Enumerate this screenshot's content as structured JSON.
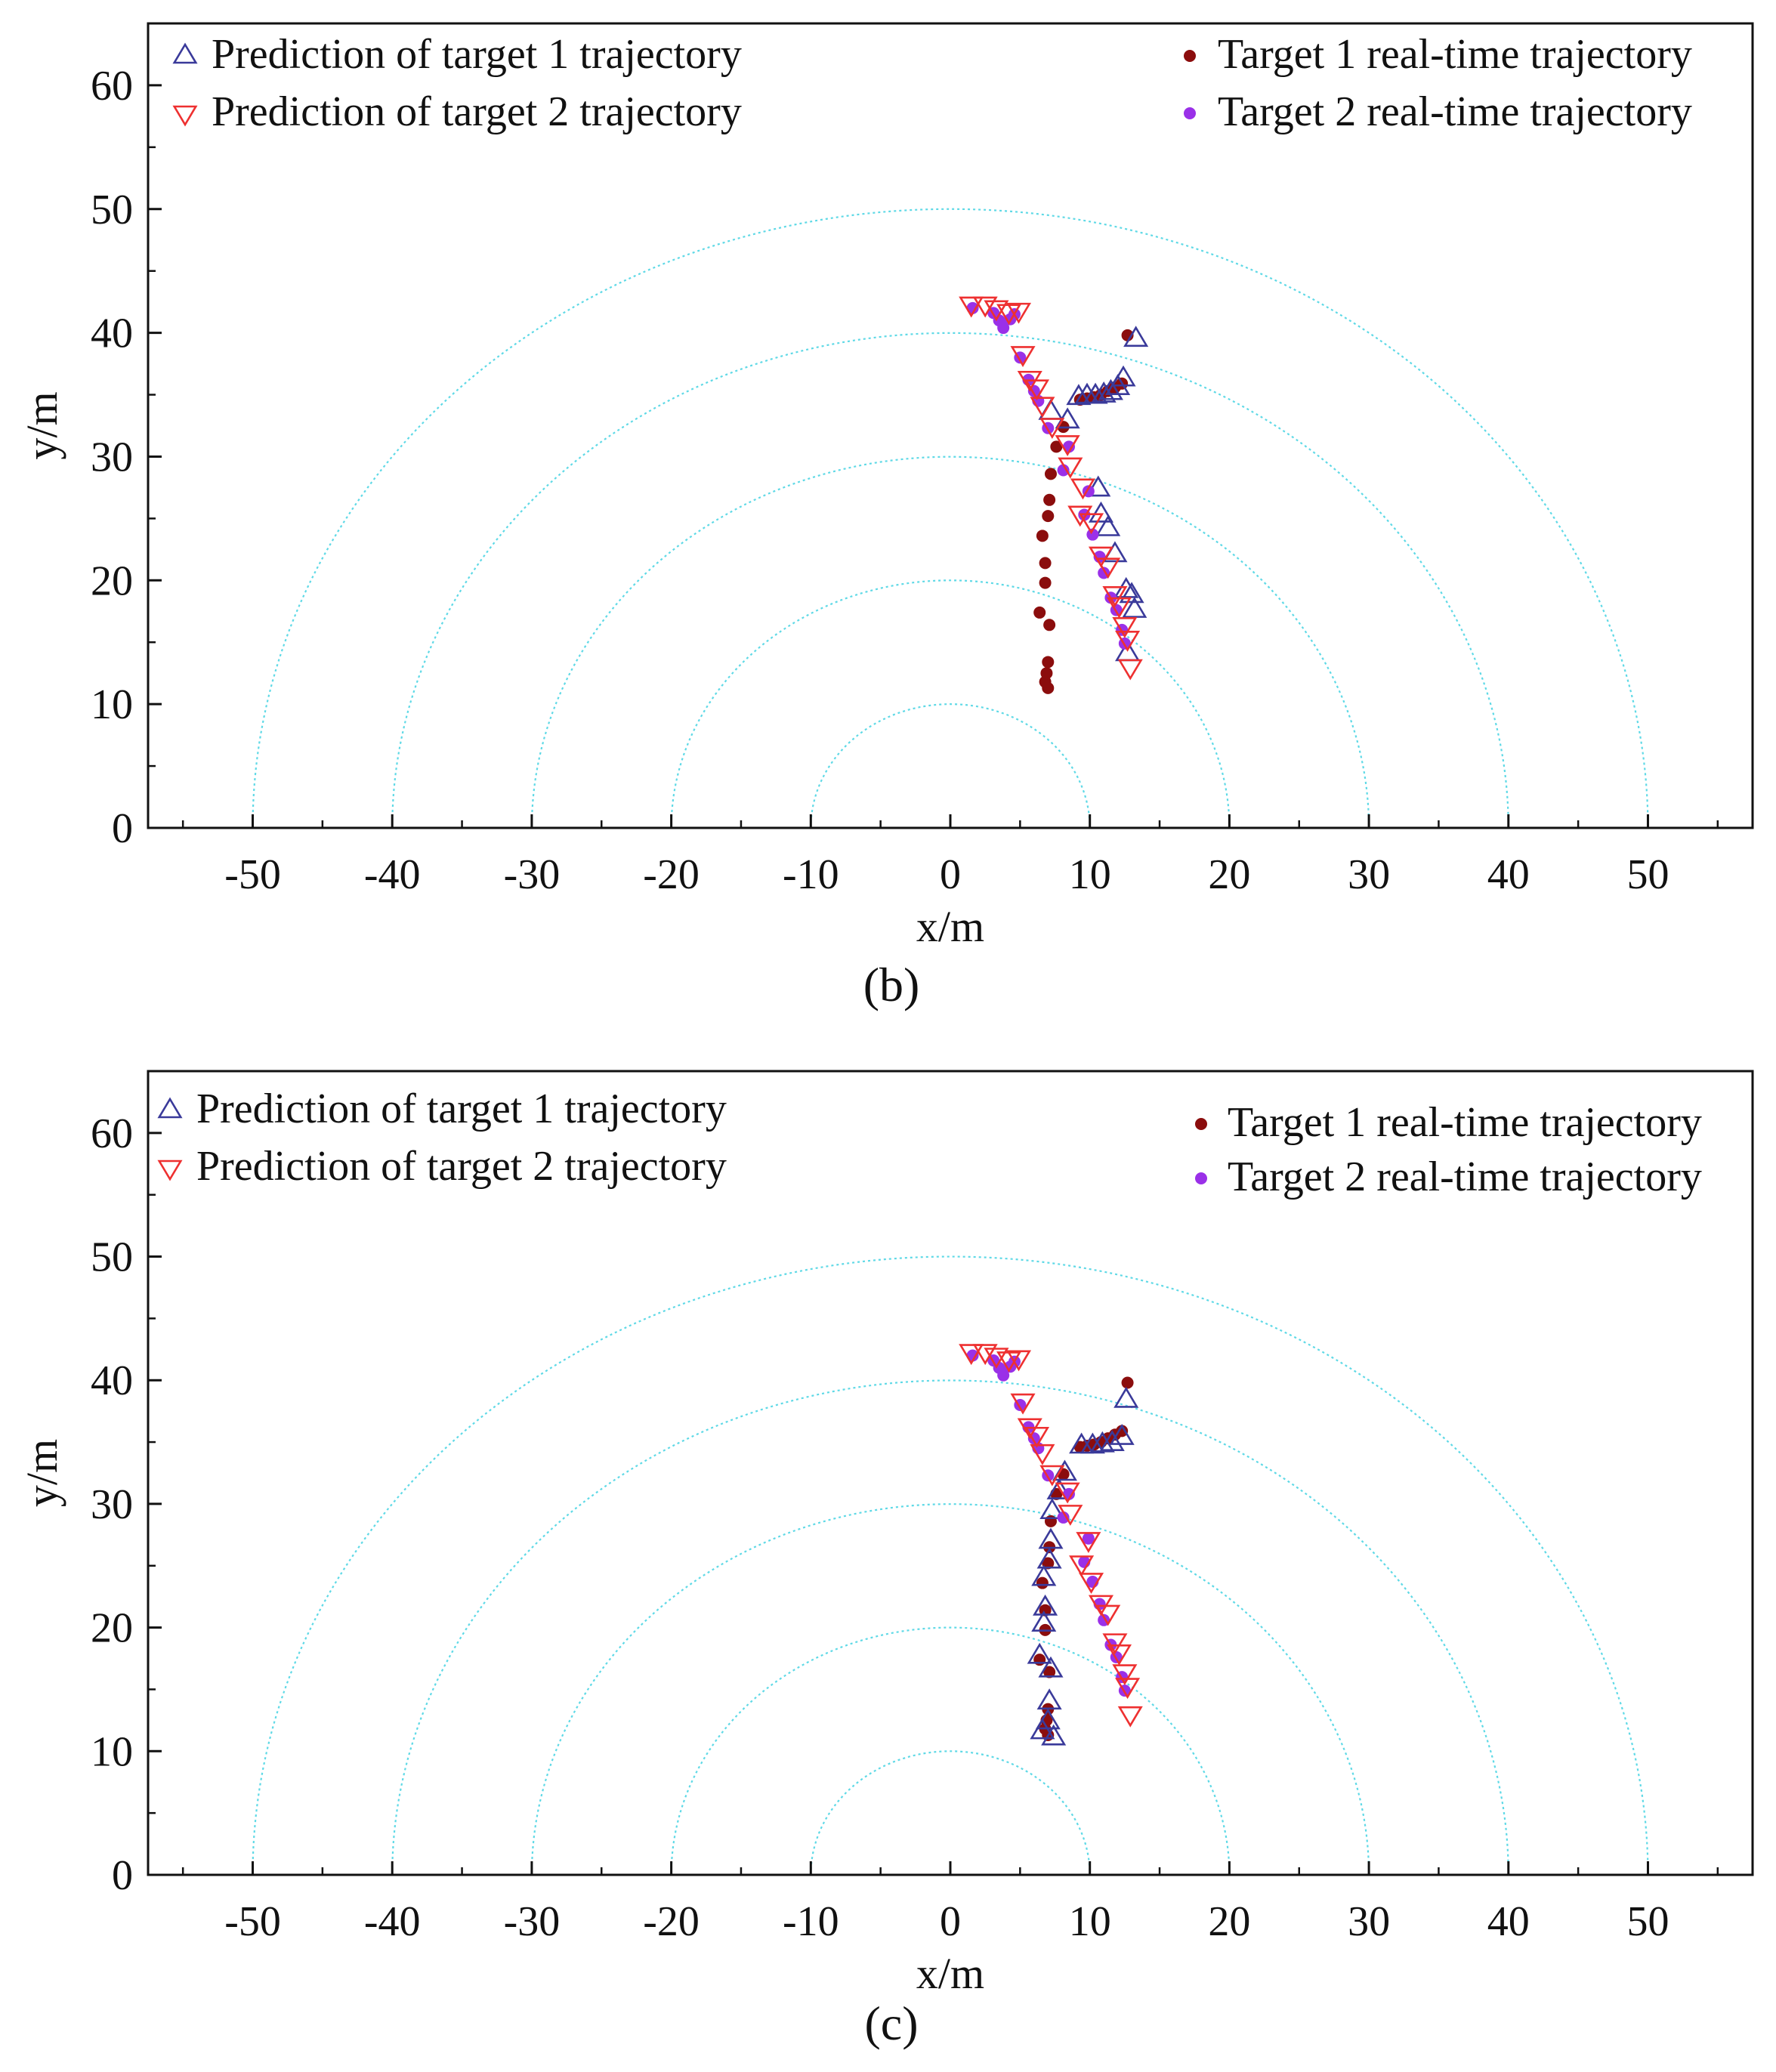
{
  "figure": {
    "panel_labels": [
      "(b)",
      "(c)"
    ]
  },
  "colors": {
    "ring": "#5fd9e6",
    "pred1": "#3a3a9a",
    "pred2": "#ee3030",
    "real1": "#8b0d0d",
    "real2": "#9a30e8",
    "axis": "#111111"
  },
  "chart_data": [
    {
      "type": "scatter",
      "panel": "(b)",
      "xlabel": "x/m",
      "ylabel": "y/m",
      "xlim": [
        -57.5,
        57.5
      ],
      "ylim": [
        0,
        65
      ],
      "xticks": [
        -50,
        -40,
        -30,
        -20,
        -10,
        0,
        10,
        20,
        30,
        40,
        50
      ],
      "yticks": [
        0,
        10,
        20,
        30,
        40,
        50,
        60
      ],
      "range_rings": [
        10,
        20,
        30,
        40,
        50
      ],
      "legend": [
        {
          "key": "pred1",
          "label": "Prediction of target 1 trajectory",
          "marker": "triangle-up"
        },
        {
          "key": "pred2",
          "label": "Prediction of target 2 trajectory",
          "marker": "triangle-down"
        },
        {
          "key": "real1",
          "label": "Target 1 real-time trajectory",
          "marker": "dot"
        },
        {
          "key": "real2",
          "label": "Target 2 real-time trajectory",
          "marker": "dot"
        }
      ],
      "series": [
        {
          "key": "real1",
          "name": "Target 1 real-time trajectory",
          "points": [
            [
              7.0,
              11.3
            ],
            [
              6.8,
              11.8
            ],
            [
              6.9,
              12.5
            ],
            [
              7.0,
              13.4
            ],
            [
              7.1,
              16.4
            ],
            [
              6.4,
              17.4
            ],
            [
              6.8,
              19.8
            ],
            [
              6.8,
              21.4
            ],
            [
              6.6,
              23.6
            ],
            [
              7.0,
              25.2
            ],
            [
              7.1,
              26.5
            ],
            [
              7.2,
              28.6
            ],
            [
              7.6,
              30.8
            ],
            [
              8.1,
              32.4
            ],
            [
              9.3,
              34.6
            ],
            [
              9.8,
              34.7
            ],
            [
              10.3,
              34.8
            ],
            [
              10.8,
              35.0
            ],
            [
              11.3,
              35.3
            ],
            [
              11.8,
              35.6
            ],
            [
              12.3,
              35.9
            ],
            [
              12.7,
              39.8
            ]
          ]
        },
        {
          "key": "pred1",
          "name": "Prediction of target 1 trajectory",
          "points": [
            [
              13.3,
              39.5
            ],
            [
              12.4,
              36.3
            ],
            [
              12.0,
              35.6
            ],
            [
              11.5,
              35.2
            ],
            [
              11.0,
              35.0
            ],
            [
              10.4,
              34.9
            ],
            [
              9.8,
              34.9
            ],
            [
              9.2,
              34.8
            ],
            [
              8.4,
              32.9
            ],
            [
              7.2,
              33.6
            ],
            [
              10.6,
              27.4
            ],
            [
              10.8,
              25.3
            ],
            [
              11.3,
              24.2
            ],
            [
              11.8,
              22.1
            ],
            [
              12.6,
              19.2
            ],
            [
              13.0,
              18.8
            ],
            [
              13.2,
              17.6
            ],
            [
              12.7,
              14.1
            ]
          ]
        },
        {
          "key": "real2",
          "name": "Target 2 real-time trajectory",
          "points": [
            [
              1.6,
              42.0
            ],
            [
              3.1,
              41.6
            ],
            [
              3.5,
              41.0
            ],
            [
              3.8,
              40.4
            ],
            [
              4.3,
              41.1
            ],
            [
              4.6,
              41.5
            ],
            [
              5.0,
              38.0
            ],
            [
              5.6,
              36.2
            ],
            [
              6.0,
              35.3
            ],
            [
              6.3,
              34.5
            ],
            [
              7.0,
              32.3
            ],
            [
              8.1,
              28.9
            ],
            [
              8.5,
              30.8
            ],
            [
              9.9,
              27.2
            ],
            [
              9.6,
              25.3
            ],
            [
              10.2,
              23.7
            ],
            [
              10.7,
              21.9
            ],
            [
              11.0,
              20.6
            ],
            [
              11.5,
              18.6
            ],
            [
              11.9,
              17.6
            ],
            [
              12.3,
              16.0
            ],
            [
              12.5,
              14.9
            ]
          ]
        },
        {
          "key": "pred2",
          "name": "Prediction of target 2 trajectory",
          "points": [
            [
              1.5,
              42.3
            ],
            [
              2.5,
              42.3
            ],
            [
              3.3,
              42.0
            ],
            [
              4.2,
              41.7
            ],
            [
              4.9,
              41.8
            ],
            [
              5.2,
              38.3
            ],
            [
              5.7,
              36.3
            ],
            [
              6.2,
              35.6
            ],
            [
              6.6,
              34.2
            ],
            [
              7.3,
              32.5
            ],
            [
              8.4,
              31.1
            ],
            [
              8.6,
              29.3
            ],
            [
              9.5,
              27.6
            ],
            [
              9.3,
              25.4
            ],
            [
              10.1,
              24.8
            ],
            [
              10.8,
              22.1
            ],
            [
              11.3,
              21.2
            ],
            [
              11.8,
              18.9
            ],
            [
              12.1,
              18.0
            ],
            [
              12.5,
              16.4
            ],
            [
              12.7,
              15.3
            ],
            [
              12.9,
              13.0
            ]
          ]
        }
      ]
    },
    {
      "type": "scatter",
      "panel": "(c)",
      "xlabel": "x/m",
      "ylabel": "y/m",
      "xlim": [
        -57.5,
        57.5
      ],
      "ylim": [
        0,
        65
      ],
      "xticks": [
        -50,
        -40,
        -30,
        -20,
        -10,
        0,
        10,
        20,
        30,
        40,
        50
      ],
      "yticks": [
        0,
        10,
        20,
        30,
        40,
        50,
        60
      ],
      "range_rings": [
        10,
        20,
        30,
        40,
        50
      ],
      "legend": [
        {
          "key": "pred1",
          "label": "Prediction of target 1 trajectory",
          "marker": "triangle-up"
        },
        {
          "key": "pred2",
          "label": "Prediction of target 2 trajectory",
          "marker": "triangle-down"
        },
        {
          "key": "real1",
          "label": "Target 1 real-time trajectory",
          "marker": "dot"
        },
        {
          "key": "real2",
          "label": "Target 2 real-time trajectory",
          "marker": "dot"
        }
      ],
      "series": [
        {
          "key": "real1",
          "name": "Target 1 real-time trajectory",
          "points": [
            [
              7.0,
              11.3
            ],
            [
              6.8,
              11.8
            ],
            [
              6.9,
              12.5
            ],
            [
              7.0,
              13.4
            ],
            [
              7.1,
              16.4
            ],
            [
              6.4,
              17.4
            ],
            [
              6.8,
              19.8
            ],
            [
              6.8,
              21.4
            ],
            [
              6.6,
              23.6
            ],
            [
              7.0,
              25.2
            ],
            [
              7.1,
              26.5
            ],
            [
              7.2,
              28.6
            ],
            [
              7.6,
              30.8
            ],
            [
              8.1,
              32.4
            ],
            [
              9.3,
              34.6
            ],
            [
              9.8,
              34.7
            ],
            [
              10.3,
              34.8
            ],
            [
              10.8,
              35.0
            ],
            [
              11.3,
              35.3
            ],
            [
              11.8,
              35.6
            ],
            [
              12.3,
              35.9
            ],
            [
              12.7,
              39.8
            ]
          ]
        },
        {
          "key": "pred1",
          "name": "Prediction of target 1 trajectory",
          "points": [
            [
              12.6,
              38.4
            ],
            [
              12.3,
              35.4
            ],
            [
              11.6,
              34.9
            ],
            [
              10.9,
              34.8
            ],
            [
              10.2,
              34.7
            ],
            [
              9.4,
              34.7
            ],
            [
              8.2,
              32.5
            ],
            [
              7.8,
              31.0
            ],
            [
              7.3,
              29.4
            ],
            [
              7.2,
              27.0
            ],
            [
              7.1,
              25.4
            ],
            [
              6.7,
              24.0
            ],
            [
              6.8,
              21.6
            ],
            [
              6.7,
              20.3
            ],
            [
              6.4,
              17.7
            ],
            [
              7.2,
              16.6
            ],
            [
              7.1,
              14.0
            ],
            [
              7.0,
              12.4
            ],
            [
              6.6,
              11.6
            ],
            [
              7.4,
              11.1
            ]
          ]
        },
        {
          "key": "real2",
          "name": "Target 2 real-time trajectory",
          "points": [
            [
              1.6,
              42.0
            ],
            [
              3.1,
              41.6
            ],
            [
              3.5,
              41.0
            ],
            [
              3.8,
              40.4
            ],
            [
              4.3,
              41.1
            ],
            [
              4.6,
              41.5
            ],
            [
              5.0,
              38.0
            ],
            [
              5.6,
              36.2
            ],
            [
              6.0,
              35.3
            ],
            [
              6.3,
              34.5
            ],
            [
              7.0,
              32.3
            ],
            [
              8.1,
              28.9
            ],
            [
              8.5,
              30.8
            ],
            [
              9.9,
              27.2
            ],
            [
              9.6,
              25.3
            ],
            [
              10.2,
              23.7
            ],
            [
              10.7,
              21.9
            ],
            [
              11.0,
              20.6
            ],
            [
              11.5,
              18.6
            ],
            [
              11.9,
              17.6
            ],
            [
              12.3,
              16.0
            ],
            [
              12.5,
              14.9
            ]
          ]
        },
        {
          "key": "pred2",
          "name": "Prediction of target 2 trajectory",
          "points": [
            [
              1.5,
              42.3
            ],
            [
              2.5,
              42.3
            ],
            [
              3.3,
              42.0
            ],
            [
              4.2,
              41.7
            ],
            [
              4.9,
              41.8
            ],
            [
              5.2,
              38.3
            ],
            [
              5.7,
              36.3
            ],
            [
              6.2,
              35.6
            ],
            [
              6.6,
              34.2
            ],
            [
              7.3,
              32.5
            ],
            [
              8.4,
              31.1
            ],
            [
              8.6,
              29.3
            ],
            [
              9.9,
              27.1
            ],
            [
              9.4,
              25.2
            ],
            [
              10.1,
              23.8
            ],
            [
              10.8,
              22.0
            ],
            [
              11.3,
              21.2
            ],
            [
              11.8,
              18.9
            ],
            [
              12.1,
              18.0
            ],
            [
              12.5,
              16.4
            ],
            [
              12.7,
              15.3
            ],
            [
              12.9,
              13.0
            ]
          ]
        }
      ]
    }
  ]
}
